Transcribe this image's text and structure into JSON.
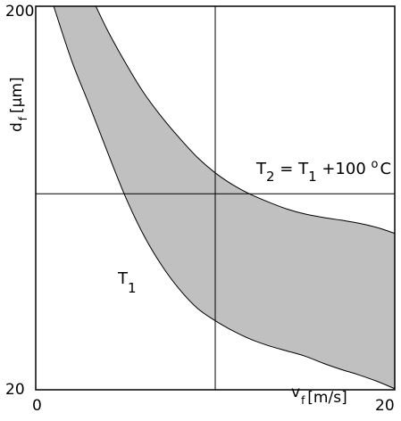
{
  "chart_data": {
    "type": "area",
    "ylabel": {
      "main": "d",
      "sub": "f",
      "unit": "[µm]"
    },
    "xlabel": {
      "main": "v",
      "sub": "f",
      "unit": "[m/s]"
    },
    "x_ticks": [
      "0",
      "20"
    ],
    "y_ticks": [
      "20",
      "200"
    ],
    "xlim": [
      0,
      20
    ],
    "ylim": [
      20,
      200
    ],
    "grid": false,
    "reference_lines": {
      "x": 10,
      "y": 112
    },
    "series": [
      {
        "name": "T1",
        "label": {
          "main": "T",
          "sub": "1"
        },
        "x": [
          1.0,
          2.0,
          3.0,
          4.0,
          5.0,
          6.0,
          7.0,
          8.0,
          9.0,
          10.0,
          11.0,
          12.0,
          13.0,
          14.0,
          15.0,
          16.0,
          17.0,
          18.0,
          19.0,
          20.0
        ],
        "y": [
          200,
          174.5,
          153.3,
          131.5,
          110.5,
          92.8,
          78.6,
          67.2,
          58.3,
          52.4,
          47.6,
          43.6,
          40.6,
          38.2,
          35.8,
          32.5,
          29.6,
          27.0,
          24.0,
          20.5
        ]
      },
      {
        "name": "T2 = T1 + 100 °C",
        "label": {
          "T": "T",
          "sub2": "2",
          "eq": " = ",
          "sub1": "1",
          "plus": " +100 ",
          "deg": "o",
          "C": "C"
        },
        "x": [
          3.35,
          4.0,
          5.0,
          6.0,
          7.0,
          8.0,
          9.0,
          10.0,
          11.0,
          12.0,
          13.0,
          14.0,
          15.0,
          16.0,
          17.0,
          18.0,
          19.0,
          20.0
        ],
        "y": [
          200,
          188.7,
          173.4,
          159.6,
          148.2,
          138.2,
          129.1,
          121.8,
          116.1,
          111.6,
          108.0,
          104.8,
          102.5,
          100.9,
          99.6,
          98.2,
          96.2,
          93.4
        ]
      }
    ]
  }
}
